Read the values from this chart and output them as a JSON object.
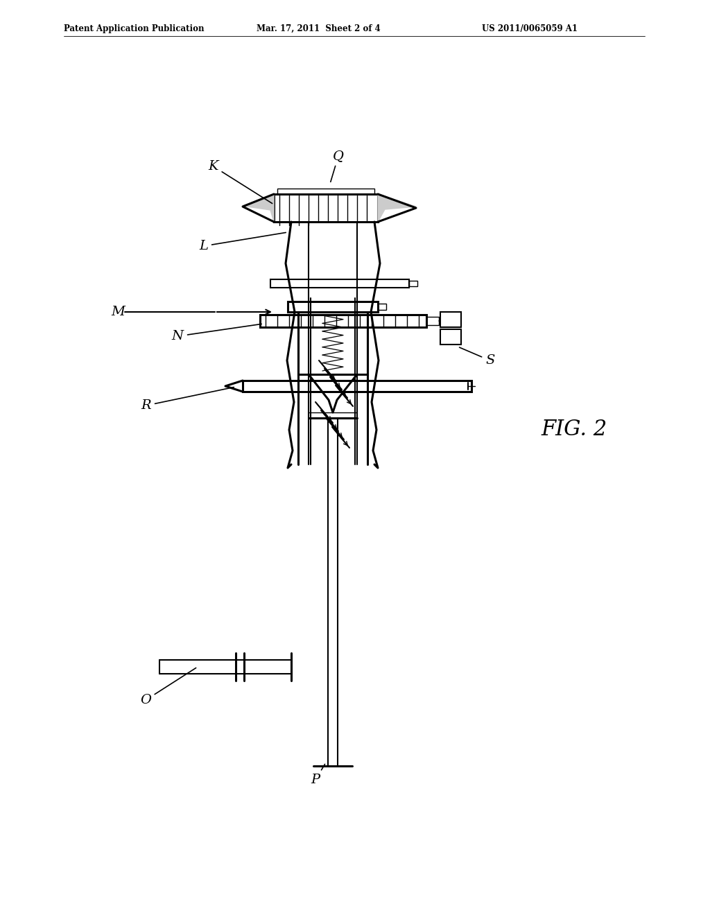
{
  "bg_color": "#ffffff",
  "lc": "#000000",
  "header_left": "Patent Application Publication",
  "header_mid": "Mar. 17, 2011  Sheet 2 of 4",
  "header_right": "US 2011/0065059 A1",
  "fig_label": "FIG. 2"
}
